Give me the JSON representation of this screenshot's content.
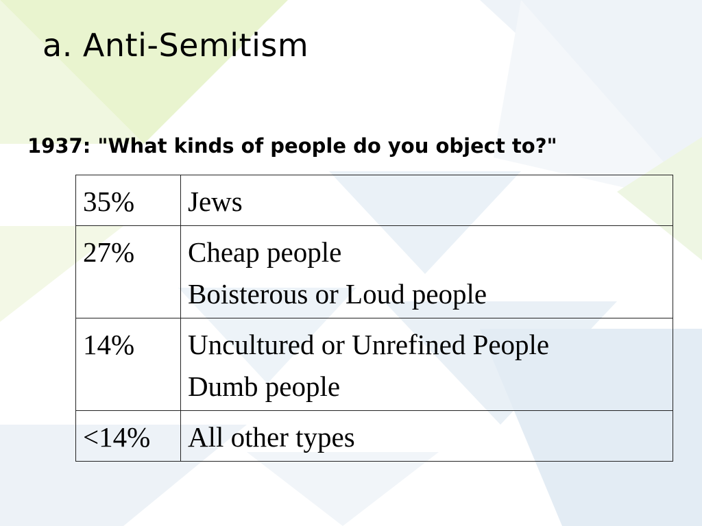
{
  "slide": {
    "title": "a. Anti-Semitism",
    "subtitle": "1937: \"What kinds of people do you object to?\""
  },
  "table": {
    "rows": [
      {
        "percent": "35%",
        "categories": [
          "Jews"
        ]
      },
      {
        "percent": "27%",
        "categories": [
          "Cheap people",
          "Boisterous or Loud people"
        ]
      },
      {
        "percent": "14%",
        "categories": [
          "Uncultured or Unrefined People",
          "Dumb people"
        ]
      },
      {
        "percent": "<14%",
        "categories": [
          "All other types"
        ]
      }
    ]
  },
  "colors": {
    "background": "#ffffff",
    "accent_green": "#e6f2c8",
    "accent_blue": "#dbe8f3",
    "text": "#000000"
  }
}
